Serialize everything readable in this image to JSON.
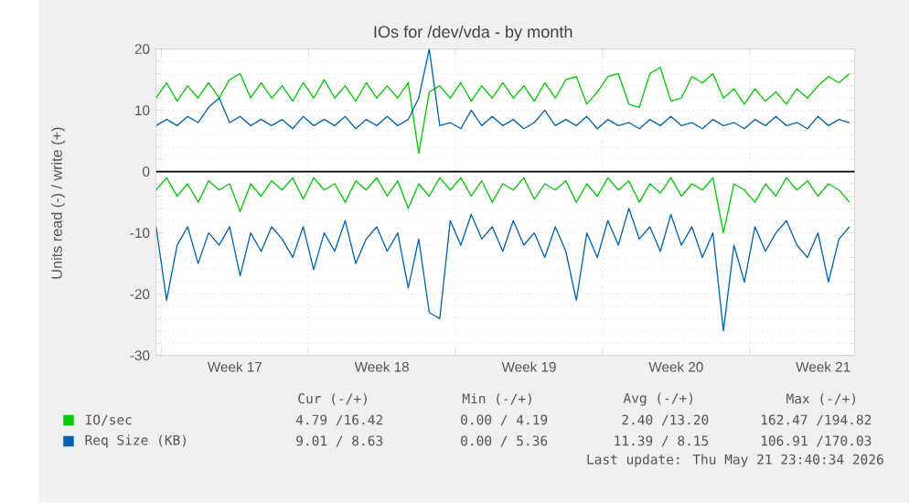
{
  "chart_data": {
    "type": "line",
    "title": "IOs for /dev/vda - by month",
    "ylabel": "Units read (-) / write (+)",
    "x": [
      "2026-04-19T18:00",
      "2026-04-20T06:00",
      "2026-04-20T18:00",
      "2026-04-21T06:00",
      "2026-04-21T18:00",
      "2026-04-22T06:00",
      "2026-04-22T18:00",
      "2026-04-23T06:00",
      "2026-04-23T18:00",
      "2026-04-24T06:00",
      "2026-04-24T18:00",
      "2026-04-25T06:00",
      "2026-04-25T18:00",
      "2026-04-26T06:00",
      "2026-04-26T18:00",
      "2026-04-27T06:00",
      "2026-04-27T18:00",
      "2026-04-28T06:00",
      "2026-04-28T18:00",
      "2026-04-29T06:00",
      "2026-04-29T18:00",
      "2026-04-30T06:00",
      "2026-04-30T18:00",
      "2026-05-01T06:00",
      "2026-05-01T18:00",
      "2026-05-02T06:00",
      "2026-05-02T18:00",
      "2026-05-03T06:00",
      "2026-05-03T18:00",
      "2026-05-04T06:00",
      "2026-05-04T18:00",
      "2026-05-05T06:00",
      "2026-05-05T18:00",
      "2026-05-06T06:00",
      "2026-05-06T18:00",
      "2026-05-07T06:00",
      "2026-05-07T18:00",
      "2026-05-08T06:00",
      "2026-05-08T18:00",
      "2026-05-09T06:00",
      "2026-05-09T18:00",
      "2026-05-10T06:00",
      "2026-05-10T18:00",
      "2026-05-11T06:00",
      "2026-05-11T18:00",
      "2026-05-12T06:00",
      "2026-05-12T18:00",
      "2026-05-13T06:00",
      "2026-05-13T18:00",
      "2026-05-14T06:00",
      "2026-05-14T18:00",
      "2026-05-15T06:00",
      "2026-05-15T18:00",
      "2026-05-16T06:00",
      "2026-05-16T18:00",
      "2026-05-17T06:00",
      "2026-05-17T18:00",
      "2026-05-18T06:00",
      "2026-05-18T18:00",
      "2026-05-19T06:00",
      "2026-05-19T18:00",
      "2026-05-20T06:00",
      "2026-05-20T18:00",
      "2026-05-21T06:00",
      "2026-05-21T18:00",
      "2026-05-22T06:00",
      "2026-05-22T18:00"
    ],
    "xlim": [
      "2026-04-19T18:00",
      "2026-05-23T00:00"
    ],
    "xticks": [
      {
        "value": "2026-04-20",
        "label": null
      },
      {
        "value": "2026-04-23T12:00",
        "label": "Week 17"
      },
      {
        "value": "2026-04-27",
        "label": null
      },
      {
        "value": "2026-04-30T12:00",
        "label": "Week 18"
      },
      {
        "value": "2026-05-04",
        "label": null
      },
      {
        "value": "2026-05-07T12:00",
        "label": "Week 19"
      },
      {
        "value": "2026-05-11",
        "label": null
      },
      {
        "value": "2026-05-14T12:00",
        "label": "Week 20"
      },
      {
        "value": "2026-05-18",
        "label": null
      },
      {
        "value": "2026-05-21T12:00",
        "label": "Week 21"
      }
    ],
    "ylim": [
      -30,
      20
    ],
    "yticks": [
      -30,
      -20,
      -10,
      0,
      10,
      20
    ],
    "grid": true,
    "legend": "bottom",
    "marker": "none",
    "ref_lines": [
      {
        "axis": "y",
        "value": 0,
        "color": "#000000"
      }
    ],
    "series": [
      {
        "name": "IO/sec",
        "color": "#00cc00",
        "values": [
          12,
          14.5,
          11.5,
          14,
          12,
          14.5,
          12,
          15,
          16,
          12,
          14.5,
          12,
          14,
          11.5,
          14.5,
          12,
          15,
          12,
          14,
          11.5,
          14.5,
          12,
          14,
          12,
          14.5,
          3,
          13,
          14,
          12,
          14.5,
          11.5,
          14,
          12,
          14.5,
          12,
          14,
          11.5,
          14.5,
          12,
          15,
          15.5,
          11,
          13,
          15.5,
          16,
          11,
          10.5,
          16,
          17,
          11.5,
          12,
          15.5,
          14.5,
          16,
          12,
          13.5,
          11,
          13.5,
          11.5,
          13,
          11,
          13.5,
          12,
          14,
          15.5,
          14.5,
          16
        ]
      },
      {
        "color": "#00cc00",
        "values": [
          -3,
          -1,
          -4,
          -2,
          -5,
          -1.5,
          -3,
          -2,
          -6.5,
          -2,
          -4,
          -1.5,
          -3,
          -1,
          -4.5,
          -1,
          -3,
          -2,
          -5,
          -1.5,
          -3,
          -1,
          -4,
          -1.5,
          -6,
          -2,
          -4,
          -1,
          -3,
          -1,
          -4,
          -1.5,
          -5,
          -2,
          -3,
          -1,
          -4.5,
          -2,
          -3,
          -1.5,
          -5,
          -2,
          -4,
          -1,
          -3,
          -1.5,
          -5,
          -2,
          -3.5,
          -1,
          -4,
          -2,
          -3,
          -1,
          -10,
          -2,
          -3,
          -5,
          -2,
          -4,
          -1,
          -3,
          -1.5,
          -4,
          -2,
          -3,
          -5
        ]
      },
      {
        "name": "Req Size (KB)",
        "color": "#0066b3",
        "values": [
          7.5,
          8.5,
          7.5,
          9,
          8,
          10.5,
          12,
          8,
          9,
          7.5,
          8.5,
          7.5,
          8.5,
          7,
          9,
          7.5,
          8.5,
          7.5,
          9,
          7,
          8.5,
          7.5,
          9,
          7.5,
          8.5,
          12,
          20,
          7.5,
          8,
          7,
          10,
          7.5,
          9,
          7.5,
          8.5,
          7,
          8,
          10,
          7.5,
          8.5,
          7.5,
          9,
          7,
          8.5,
          7.5,
          8,
          7,
          8.5,
          7.5,
          9,
          7.5,
          8,
          7,
          8.5,
          7.5,
          8,
          7,
          8.5,
          7.5,
          9,
          7.5,
          8,
          7,
          9,
          7.5,
          8.5,
          8
        ]
      },
      {
        "color": "#0066b3",
        "values": [
          -9,
          -21,
          -12,
          -9,
          -15,
          -10,
          -12,
          -9,
          -17,
          -10,
          -13,
          -9,
          -11,
          -14,
          -9,
          -16,
          -10,
          -13,
          -8,
          -15,
          -11,
          -9,
          -13,
          -10,
          -19,
          -11,
          -23,
          -24,
          -8,
          -12,
          -7,
          -11,
          -9,
          -13,
          -8,
          -12,
          -10,
          -14,
          -9,
          -13,
          -21,
          -10,
          -14,
          -8,
          -12,
          -6,
          -11,
          -9,
          -13,
          -7,
          -12,
          -9,
          -14,
          -10,
          -26,
          -12,
          -18,
          -9,
          -13,
          -10,
          -8,
          -12,
          -14,
          -10,
          -18,
          -11,
          -9
        ]
      }
    ],
    "annotations": [
      "Cur (-/+)",
      "Min (-/+)",
      "Avg (-/+)",
      "Max (-/+)",
      "4.79 /16.42",
      "0.00 / 4.19",
      "2.40 /13.20",
      "162.47 /194.82",
      "9.01 / 8.63",
      "0.00 / 5.36",
      "11.39 / 8.15",
      "106.91 /170.03",
      "Last update: Thu May 21 23:40:34 2026"
    ]
  }
}
